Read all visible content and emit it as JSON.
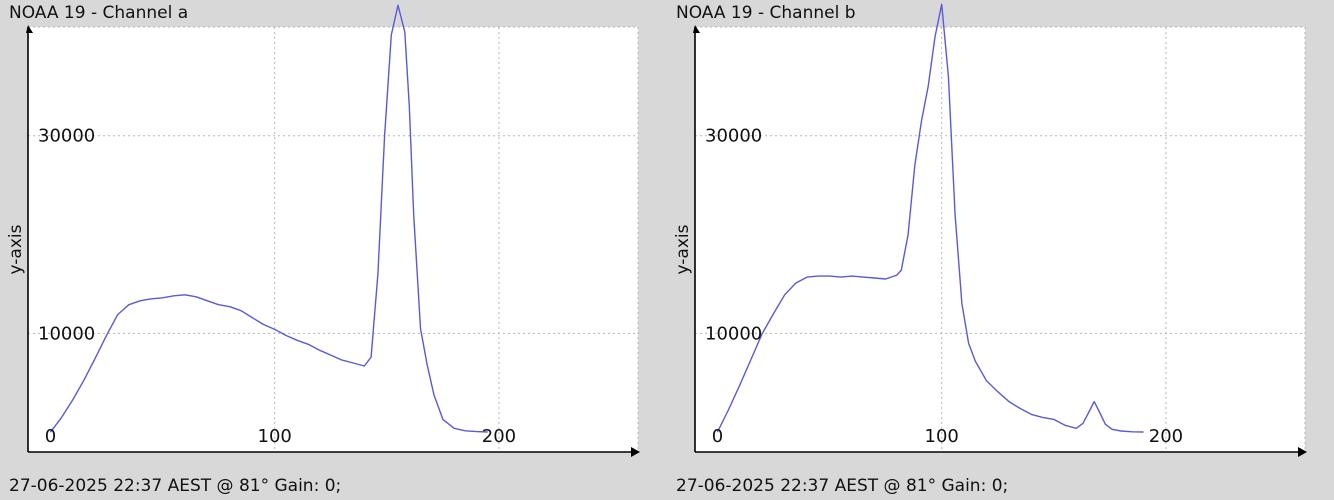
{
  "chart_data": [
    {
      "type": "line",
      "title": "NOAA 19 - Channel a",
      "footer": "27-06-2025 22:37 AEST @ 81° Gain: 0;",
      "ylabel": "y-axis",
      "xlabel": "",
      "xlim": [
        -10,
        262
      ],
      "ylim": [
        -2000,
        41000
      ],
      "x_ticks": [
        0,
        100,
        200
      ],
      "y_ticks": [
        10000,
        30000
      ],
      "grid": true,
      "line_color": "#5a5ad8",
      "series": [
        {
          "x": [
            0,
            5,
            10,
            15,
            20,
            25,
            30,
            35,
            40,
            45,
            50,
            55,
            60,
            65,
            70,
            75,
            80,
            85,
            90,
            95,
            100,
            105,
            110,
            115,
            120,
            125,
            130,
            135,
            140,
            143,
            146,
            149,
            152,
            155,
            158,
            160,
            162,
            165,
            168,
            171,
            175,
            180,
            185,
            190,
            195
          ],
          "y": [
            0,
            1500,
            3300,
            5300,
            7500,
            9800,
            11900,
            12900,
            13300,
            13500,
            13600,
            13800,
            13900,
            13700,
            13300,
            12900,
            12700,
            12300,
            11600,
            10900,
            10400,
            9800,
            9300,
            8900,
            8300,
            7800,
            7300,
            7000,
            6700,
            7600,
            16000,
            30000,
            40200,
            43200,
            40500,
            33000,
            22000,
            10500,
            6800,
            3800,
            1300,
            400,
            150,
            60,
            20
          ]
        }
      ]
    },
    {
      "type": "line",
      "title": "NOAA 19 - Channel b",
      "footer": "27-06-2025 22:37 AEST @ 81° Gain: 0;",
      "ylabel": "y-axis",
      "xlabel": "",
      "xlim": [
        -10,
        262
      ],
      "ylim": [
        -2000,
        41000
      ],
      "x_ticks": [
        0,
        100,
        200
      ],
      "y_ticks": [
        10000,
        30000
      ],
      "grid": true,
      "line_color": "#5a5ad8",
      "series": [
        {
          "x": [
            0,
            5,
            10,
            15,
            20,
            25,
            30,
            35,
            40,
            45,
            50,
            55,
            60,
            65,
            70,
            75,
            80,
            82,
            85,
            88,
            91,
            94,
            97,
            100,
            103,
            106,
            109,
            112,
            115,
            120,
            125,
            130,
            135,
            140,
            145,
            150,
            155,
            160,
            163,
            166,
            168,
            170,
            173,
            176,
            180,
            185,
            190
          ],
          "y": [
            0,
            2300,
            4800,
            7400,
            10000,
            12000,
            13900,
            15100,
            15700,
            15800,
            15800,
            15700,
            15800,
            15700,
            15600,
            15500,
            15900,
            16400,
            20000,
            27000,
            31500,
            35000,
            40000,
            43300,
            36000,
            22000,
            13000,
            9000,
            7200,
            5200,
            4100,
            3100,
            2400,
            1800,
            1500,
            1300,
            700,
            400,
            900,
            2200,
            3100,
            2200,
            800,
            300,
            120,
            40,
            20
          ]
        }
      ]
    }
  ]
}
